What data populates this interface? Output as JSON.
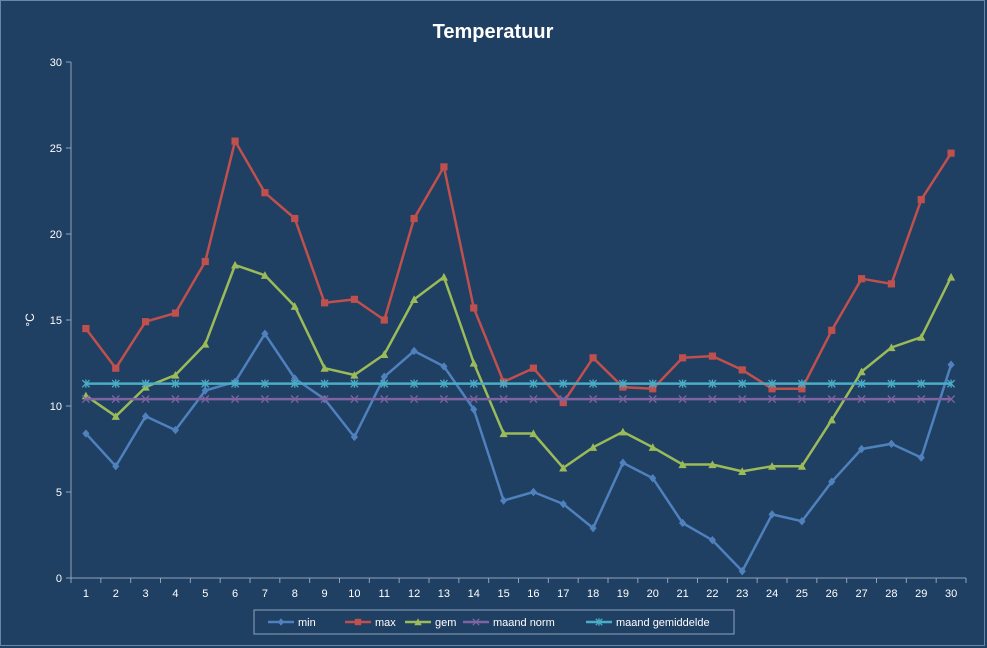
{
  "chart_data": {
    "type": "line",
    "title": "Temperatuur",
    "ylabel": "°C",
    "xlabel": "",
    "ylim": [
      0,
      30
    ],
    "yticks": [
      0,
      5,
      10,
      15,
      20,
      25,
      30
    ],
    "x": [
      1,
      2,
      3,
      4,
      5,
      6,
      7,
      8,
      9,
      10,
      11,
      12,
      13,
      14,
      15,
      16,
      17,
      18,
      19,
      20,
      21,
      22,
      23,
      24,
      25,
      26,
      27,
      28,
      29,
      30
    ],
    "grid": false,
    "legend": "bottom",
    "series": [
      {
        "name": "min",
        "color": "#4F81BD",
        "marker": "diamond",
        "values": [
          8.4,
          6.5,
          9.4,
          8.6,
          10.9,
          11.4,
          14.2,
          11.6,
          10.4,
          8.2,
          11.7,
          13.2,
          12.3,
          9.8,
          4.5,
          5.0,
          4.3,
          2.9,
          6.7,
          5.8,
          3.2,
          2.2,
          0.4,
          3.7,
          3.3,
          5.6,
          7.5,
          7.8,
          7.0,
          12.4
        ]
      },
      {
        "name": "max",
        "color": "#C0504D",
        "marker": "square",
        "values": [
          14.5,
          12.2,
          14.9,
          15.4,
          18.4,
          25.4,
          22.4,
          20.9,
          16.0,
          16.2,
          15.0,
          20.9,
          23.9,
          15.7,
          11.4,
          12.2,
          10.2,
          12.8,
          11.1,
          11.0,
          12.8,
          12.9,
          12.1,
          11.0,
          11.0,
          14.4,
          17.4,
          17.1,
          22.0,
          24.7
        ]
      },
      {
        "name": "gem",
        "color": "#9BBB59",
        "marker": "triangle",
        "values": [
          10.6,
          9.4,
          11.1,
          11.8,
          13.6,
          18.2,
          17.6,
          15.8,
          12.2,
          11.8,
          13.0,
          16.2,
          17.5,
          12.5,
          8.4,
          8.4,
          6.4,
          7.6,
          8.5,
          7.6,
          6.6,
          6.6,
          6.2,
          6.5,
          6.5,
          9.2,
          12.0,
          13.4,
          14.0,
          17.5
        ]
      },
      {
        "name": "maand norm",
        "color": "#8064A2",
        "marker": "x",
        "values": [
          10.4,
          10.4,
          10.4,
          10.4,
          10.4,
          10.4,
          10.4,
          10.4,
          10.4,
          10.4,
          10.4,
          10.4,
          10.4,
          10.4,
          10.4,
          10.4,
          10.4,
          10.4,
          10.4,
          10.4,
          10.4,
          10.4,
          10.4,
          10.4,
          10.4,
          10.4,
          10.4,
          10.4,
          10.4,
          10.4
        ]
      },
      {
        "name": "maand gemiddelde",
        "color": "#4BACC6",
        "marker": "star",
        "values": [
          11.3,
          11.3,
          11.3,
          11.3,
          11.3,
          11.3,
          11.3,
          11.3,
          11.3,
          11.3,
          11.3,
          11.3,
          11.3,
          11.3,
          11.3,
          11.3,
          11.3,
          11.3,
          11.3,
          11.3,
          11.3,
          11.3,
          11.3,
          11.3,
          11.3,
          11.3,
          11.3,
          11.3,
          11.3,
          11.3
        ]
      }
    ]
  }
}
